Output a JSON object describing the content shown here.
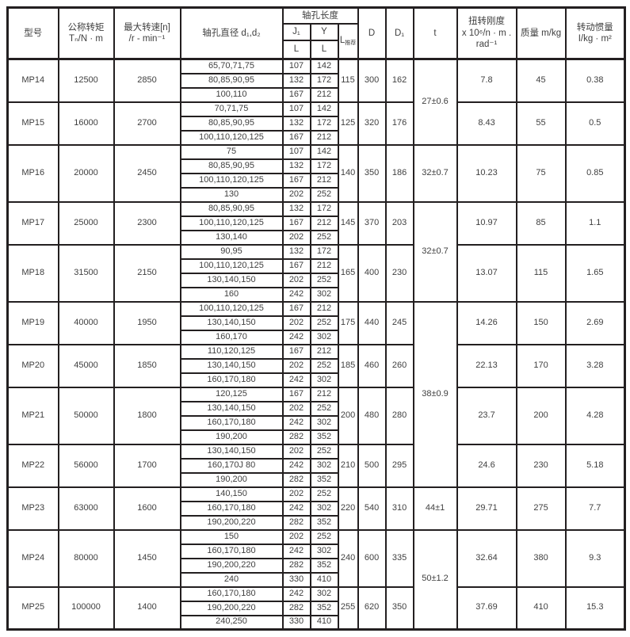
{
  "colors": {
    "border": "#231f20",
    "text": "#3f3f3f",
    "background": "#ffffff"
  },
  "table": {
    "header": {
      "model": "型号",
      "torque_line1": "公称转矩",
      "torque_line2": "Tₙ/N · m",
      "speed_line1": "最大转速[n]",
      "speed_line2": "/r - min⁻¹",
      "bore_diameter": "轴孔直径 d₁,d₂",
      "bore_length": "轴孔长度",
      "j1": "J₁",
      "y": "Y",
      "l_under_j1": "L",
      "l_under_y": "L",
      "l_rec_main": "L",
      "l_rec_sub": "推荐",
      "D": "D",
      "D1": "D₁",
      "t": "t",
      "stiffness_line1": "扭转刚度",
      "stiffness_line2": "x 10⁶/n · m .",
      "stiffness_line3": "rad⁻¹",
      "mass": "质量  m/kg",
      "inertia_line1": "转动惯量",
      "inertia_line2": "I/kg · m²"
    },
    "t_groups": [
      {
        "value": "27±0.6",
        "models": [
          "MP14",
          "MP15"
        ]
      },
      {
        "value": "32±0.7",
        "models": [
          "MP16"
        ]
      },
      {
        "value": "32±0.7",
        "models": [
          "MP17",
          "MP18"
        ]
      },
      {
        "value": "38±0.9",
        "models": [
          "MP19",
          "MP20",
          "MP21",
          "MP22"
        ]
      },
      {
        "value": "44±1",
        "models": [
          "MP23"
        ]
      },
      {
        "value": "50±1.2",
        "models": [
          "MP24",
          "MP25"
        ]
      }
    ],
    "models": [
      {
        "model": "MP14",
        "torque": "12500",
        "speed": "2850",
        "bores": [
          {
            "d": "65,70,71,75",
            "j1_l": "107",
            "y_l": "142"
          },
          {
            "d": "80,85,90,95",
            "j1_l": "132",
            "y_l": "172"
          },
          {
            "d": "100,110",
            "j1_l": "167",
            "y_l": "212"
          }
        ],
        "l_rec": "115",
        "D": "300",
        "D1": "162",
        "t_group": 0,
        "stiffness": "7.8",
        "mass": "45",
        "inertia": "0.38"
      },
      {
        "model": "MP15",
        "torque": "16000",
        "speed": "2700",
        "bores": [
          {
            "d": "70,71,75",
            "j1_l": "107",
            "y_l": "142"
          },
          {
            "d": "80,85,90,95",
            "j1_l": "132",
            "y_l": "172"
          },
          {
            "d": "100,110,120,125",
            "j1_l": "167",
            "y_l": "212"
          }
        ],
        "l_rec": "125",
        "D": "320",
        "D1": "176",
        "t_group": 0,
        "stiffness": "8.43",
        "mass": "55",
        "inertia": "0.5"
      },
      {
        "model": "MP16",
        "torque": "20000",
        "speed": "2450",
        "bores": [
          {
            "d": "75",
            "j1_l": "107",
            "y_l": "142"
          },
          {
            "d": "80,85,90,95",
            "j1_l": "132",
            "y_l": "172"
          },
          {
            "d": "100,110,120,125",
            "j1_l": "167",
            "y_l": "212"
          },
          {
            "d": "130",
            "j1_l": "202",
            "y_l": "252"
          }
        ],
        "l_rec": "140",
        "D": "350",
        "D1": "186",
        "t_group": 1,
        "stiffness": "10.23",
        "mass": "75",
        "inertia": "0.85"
      },
      {
        "model": "MP17",
        "torque": "25000",
        "speed": "2300",
        "bores": [
          {
            "d": "80,85,90,95",
            "j1_l": "132",
            "y_l": "172"
          },
          {
            "d": "100,110,120,125",
            "j1_l": "167",
            "y_l": "212"
          },
          {
            "d": "130,140",
            "j1_l": "202",
            "y_l": "252"
          }
        ],
        "l_rec": "145",
        "D": "370",
        "D1": "203",
        "t_group": 2,
        "stiffness": "10.97",
        "mass": "85",
        "inertia": "1.1"
      },
      {
        "model": "MP18",
        "torque": "31500",
        "speed": "2150",
        "bores": [
          {
            "d": "90,95",
            "j1_l": "132",
            "y_l": "172"
          },
          {
            "d": "100,110,120,125",
            "j1_l": "167",
            "y_l": "212"
          },
          {
            "d": "130,140,150",
            "j1_l": "202",
            "y_l": "252"
          },
          {
            "d": "160",
            "j1_l": "242",
            "y_l": "302"
          }
        ],
        "l_rec": "165",
        "D": "400",
        "D1": "230",
        "t_group": 2,
        "stiffness": "13.07",
        "mass": "115",
        "inertia": "1.65"
      },
      {
        "model": "MP19",
        "torque": "40000",
        "speed": "1950",
        "bores": [
          {
            "d": "100,110,120,125",
            "j1_l": "167",
            "y_l": "212"
          },
          {
            "d": "130,140,150",
            "j1_l": "202",
            "y_l": "252"
          },
          {
            "d": "160,170",
            "j1_l": "242",
            "y_l": "302"
          }
        ],
        "l_rec": "175",
        "D": "440",
        "D1": "245",
        "t_group": 3,
        "stiffness": "14.26",
        "mass": "150",
        "inertia": "2.69"
      },
      {
        "model": "MP20",
        "torque": "45000",
        "speed": "1850",
        "bores": [
          {
            "d": "110,120,125",
            "j1_l": "167",
            "y_l": "212"
          },
          {
            "d": "130,140,150",
            "j1_l": "202",
            "y_l": "252"
          },
          {
            "d": "160,170,180",
            "j1_l": "242",
            "y_l": "302"
          }
        ],
        "l_rec": "185",
        "D": "460",
        "D1": "260",
        "t_group": 3,
        "stiffness": "22.13",
        "mass": "170",
        "inertia": "3.28"
      },
      {
        "model": "MP21",
        "torque": "50000",
        "speed": "1800",
        "bores": [
          {
            "d": "120,125",
            "j1_l": "167",
            "y_l": "212"
          },
          {
            "d": "130,140,150",
            "j1_l": "202",
            "y_l": "252"
          },
          {
            "d": "160,170,180",
            "j1_l": "242",
            "y_l": "302"
          },
          {
            "d": "190,200",
            "j1_l": "282",
            "y_l": "352"
          }
        ],
        "l_rec": "200",
        "D": "480",
        "D1": "280",
        "t_group": 3,
        "stiffness": "23.7",
        "mass": "200",
        "inertia": "4.28"
      },
      {
        "model": "MP22",
        "torque": "56000",
        "speed": "1700",
        "bores": [
          {
            "d": "130,140,150",
            "j1_l": "202",
            "y_l": "252"
          },
          {
            "d": "160,170J 80",
            "j1_l": "242",
            "y_l": "302"
          },
          {
            "d": "190,200",
            "j1_l": "282",
            "y_l": "352"
          }
        ],
        "l_rec": "210",
        "D": "500",
        "D1": "295",
        "t_group": 3,
        "stiffness": "24.6",
        "mass": "230",
        "inertia": "5.18"
      },
      {
        "model": "MP23",
        "torque": "63000",
        "speed": "1600",
        "bores": [
          {
            "d": "140,150",
            "j1_l": "202",
            "y_l": "252"
          },
          {
            "d": "160,170,180",
            "j1_l": "242",
            "y_l": "302"
          },
          {
            "d": "190,200,220",
            "j1_l": "282",
            "y_l": "352"
          }
        ],
        "l_rec": "220",
        "D": "540",
        "D1": "310",
        "t_group": 4,
        "stiffness": "29.71",
        "mass": "275",
        "inertia": "7.7"
      },
      {
        "model": "MP24",
        "torque": "80000",
        "speed": "1450",
        "bores": [
          {
            "d": "150",
            "j1_l": "202",
            "y_l": "252"
          },
          {
            "d": "160,170,180",
            "j1_l": "242",
            "y_l": "302"
          },
          {
            "d": "190,200,220",
            "j1_l": "282",
            "y_l": "352"
          },
          {
            "d": "240",
            "j1_l": "330",
            "y_l": "410"
          }
        ],
        "l_rec": "240",
        "D": "600",
        "D1": "335",
        "t_group": 5,
        "stiffness": "32.64",
        "mass": "380",
        "inertia": "9.3"
      },
      {
        "model": "MP25",
        "torque": "100000",
        "speed": "1400",
        "bores": [
          {
            "d": "160,170,180",
            "j1_l": "242",
            "y_l": "302"
          },
          {
            "d": "190,200,220",
            "j1_l": "282",
            "y_l": "352"
          },
          {
            "d": "240,250",
            "j1_l": "330",
            "y_l": "410"
          }
        ],
        "l_rec": "255",
        "D": "620",
        "D1": "350",
        "t_group": 5,
        "stiffness": "37.69",
        "mass": "410",
        "inertia": "15.3"
      }
    ]
  }
}
